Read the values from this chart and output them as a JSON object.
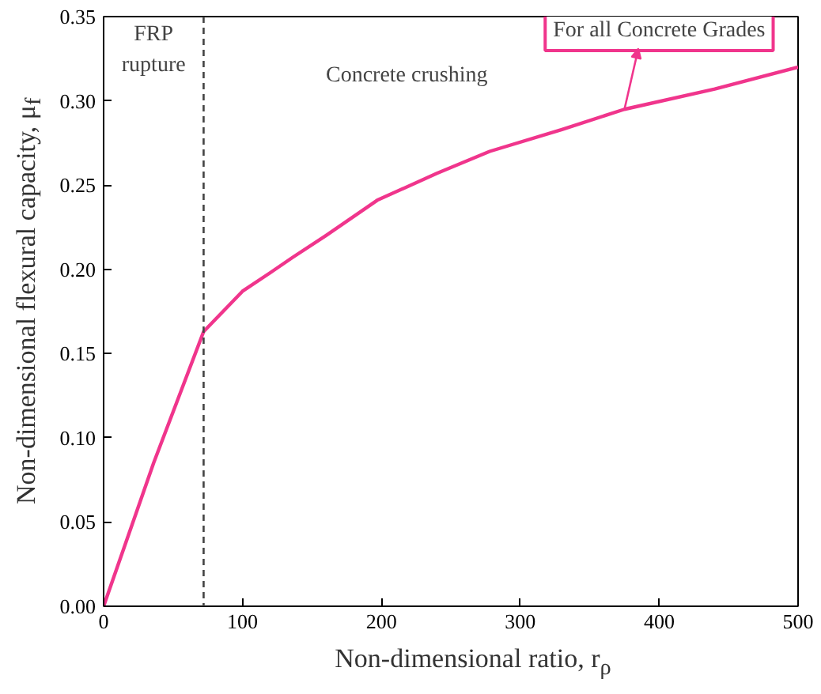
{
  "chart_data": {
    "type": "line",
    "xlabel": "Non-dimensional ratio, r$_{ρ}$",
    "ylabel": "Non-dimensional flexural capacity, μ$_{f}$",
    "x": [
      0,
      36,
      72,
      100,
      120,
      136,
      160,
      197,
      240,
      278,
      330,
      375,
      440,
      500
    ],
    "series": [
      {
        "color": "#f0358c",
        "values": [
          0,
          0.085,
          0.163,
          0.187,
          0.198,
          0.207,
          0.22,
          0.241,
          0.257,
          0.27,
          0.283,
          0.295,
          0.307,
          0.32
        ]
      }
    ],
    "xlim": [
      0,
      500
    ],
    "xticks": [
      0,
      100,
      200,
      300,
      400,
      500
    ],
    "ylim": [
      0,
      0.35
    ],
    "yticks": [
      {
        "value": 0,
        "label": "0.00"
      },
      {
        "value": 0.05,
        "label": "0.05"
      },
      {
        "value": 0.1,
        "label": "0.10"
      },
      {
        "value": 0.15,
        "label": "0.15"
      },
      {
        "value": 0.2,
        "label": "0.20"
      },
      {
        "value": 0.25,
        "label": "0.25"
      },
      {
        "value": 0.3,
        "label": "0.30"
      },
      {
        "value": 0.35,
        "label": "0.35"
      }
    ],
    "ref_lines": [
      {
        "axis": "x",
        "value": 72,
        "color": "#444444",
        "line_style": "dashed"
      }
    ],
    "annotations": [
      {
        "text": "For all Concrete Grades",
        "x": 375,
        "y": 0.295
      },
      "FRP\nrupture",
      "Concrete crushing"
    ],
    "grid": false,
    "marker": "none",
    "line_style": "solid"
  }
}
